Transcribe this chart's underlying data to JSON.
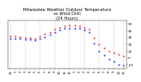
{
  "title": "Milwaukee Weather Outdoor Temperature",
  "subtitle": "vs Wind Chill",
  "subtitle2": "(24 Hours)",
  "title_color": "#000000",
  "bg_color": "#ffffff",
  "plot_bg_color": "#ffffff",
  "grid_color": "#888888",
  "temp_color": "#ff0000",
  "windchill_color": "#0000ff",
  "hours": [
    0,
    1,
    2,
    3,
    4,
    5,
    6,
    7,
    8,
    9,
    10,
    11,
    12,
    13,
    14,
    15,
    16,
    17,
    18,
    19,
    20,
    21,
    22,
    23
  ],
  "temp": [
    32,
    32,
    31,
    30,
    30,
    29,
    32,
    35,
    38,
    42,
    45,
    47,
    48,
    48,
    47,
    45,
    42,
    30,
    20,
    15,
    10,
    8,
    5,
    3
  ],
  "windchill": [
    29,
    29,
    28,
    27,
    27,
    26,
    28,
    31,
    34,
    38,
    41,
    43,
    44,
    44,
    43,
    41,
    38,
    22,
    10,
    4,
    -2,
    -5,
    -9,
    -11
  ],
  "ylim": [
    -15,
    55
  ],
  "yticks": [
    -10,
    0,
    10,
    20,
    30,
    40,
    50
  ],
  "ylabel_fontsize": 3.0,
  "xlabel_fontsize": 3.0,
  "title_fontsize": 3.8,
  "marker_size": 0.9,
  "grid_xticks": [
    0,
    3,
    6,
    9,
    12,
    15,
    18,
    21,
    23
  ],
  "xtick_labels": [
    "12",
    "1",
    "2",
    "3",
    "4",
    "5",
    "6",
    "7",
    "8",
    "9",
    "10",
    "11",
    "12",
    "1",
    "2",
    "3",
    "4",
    "5",
    "6",
    "7",
    "8",
    "9",
    "10",
    "11"
  ]
}
